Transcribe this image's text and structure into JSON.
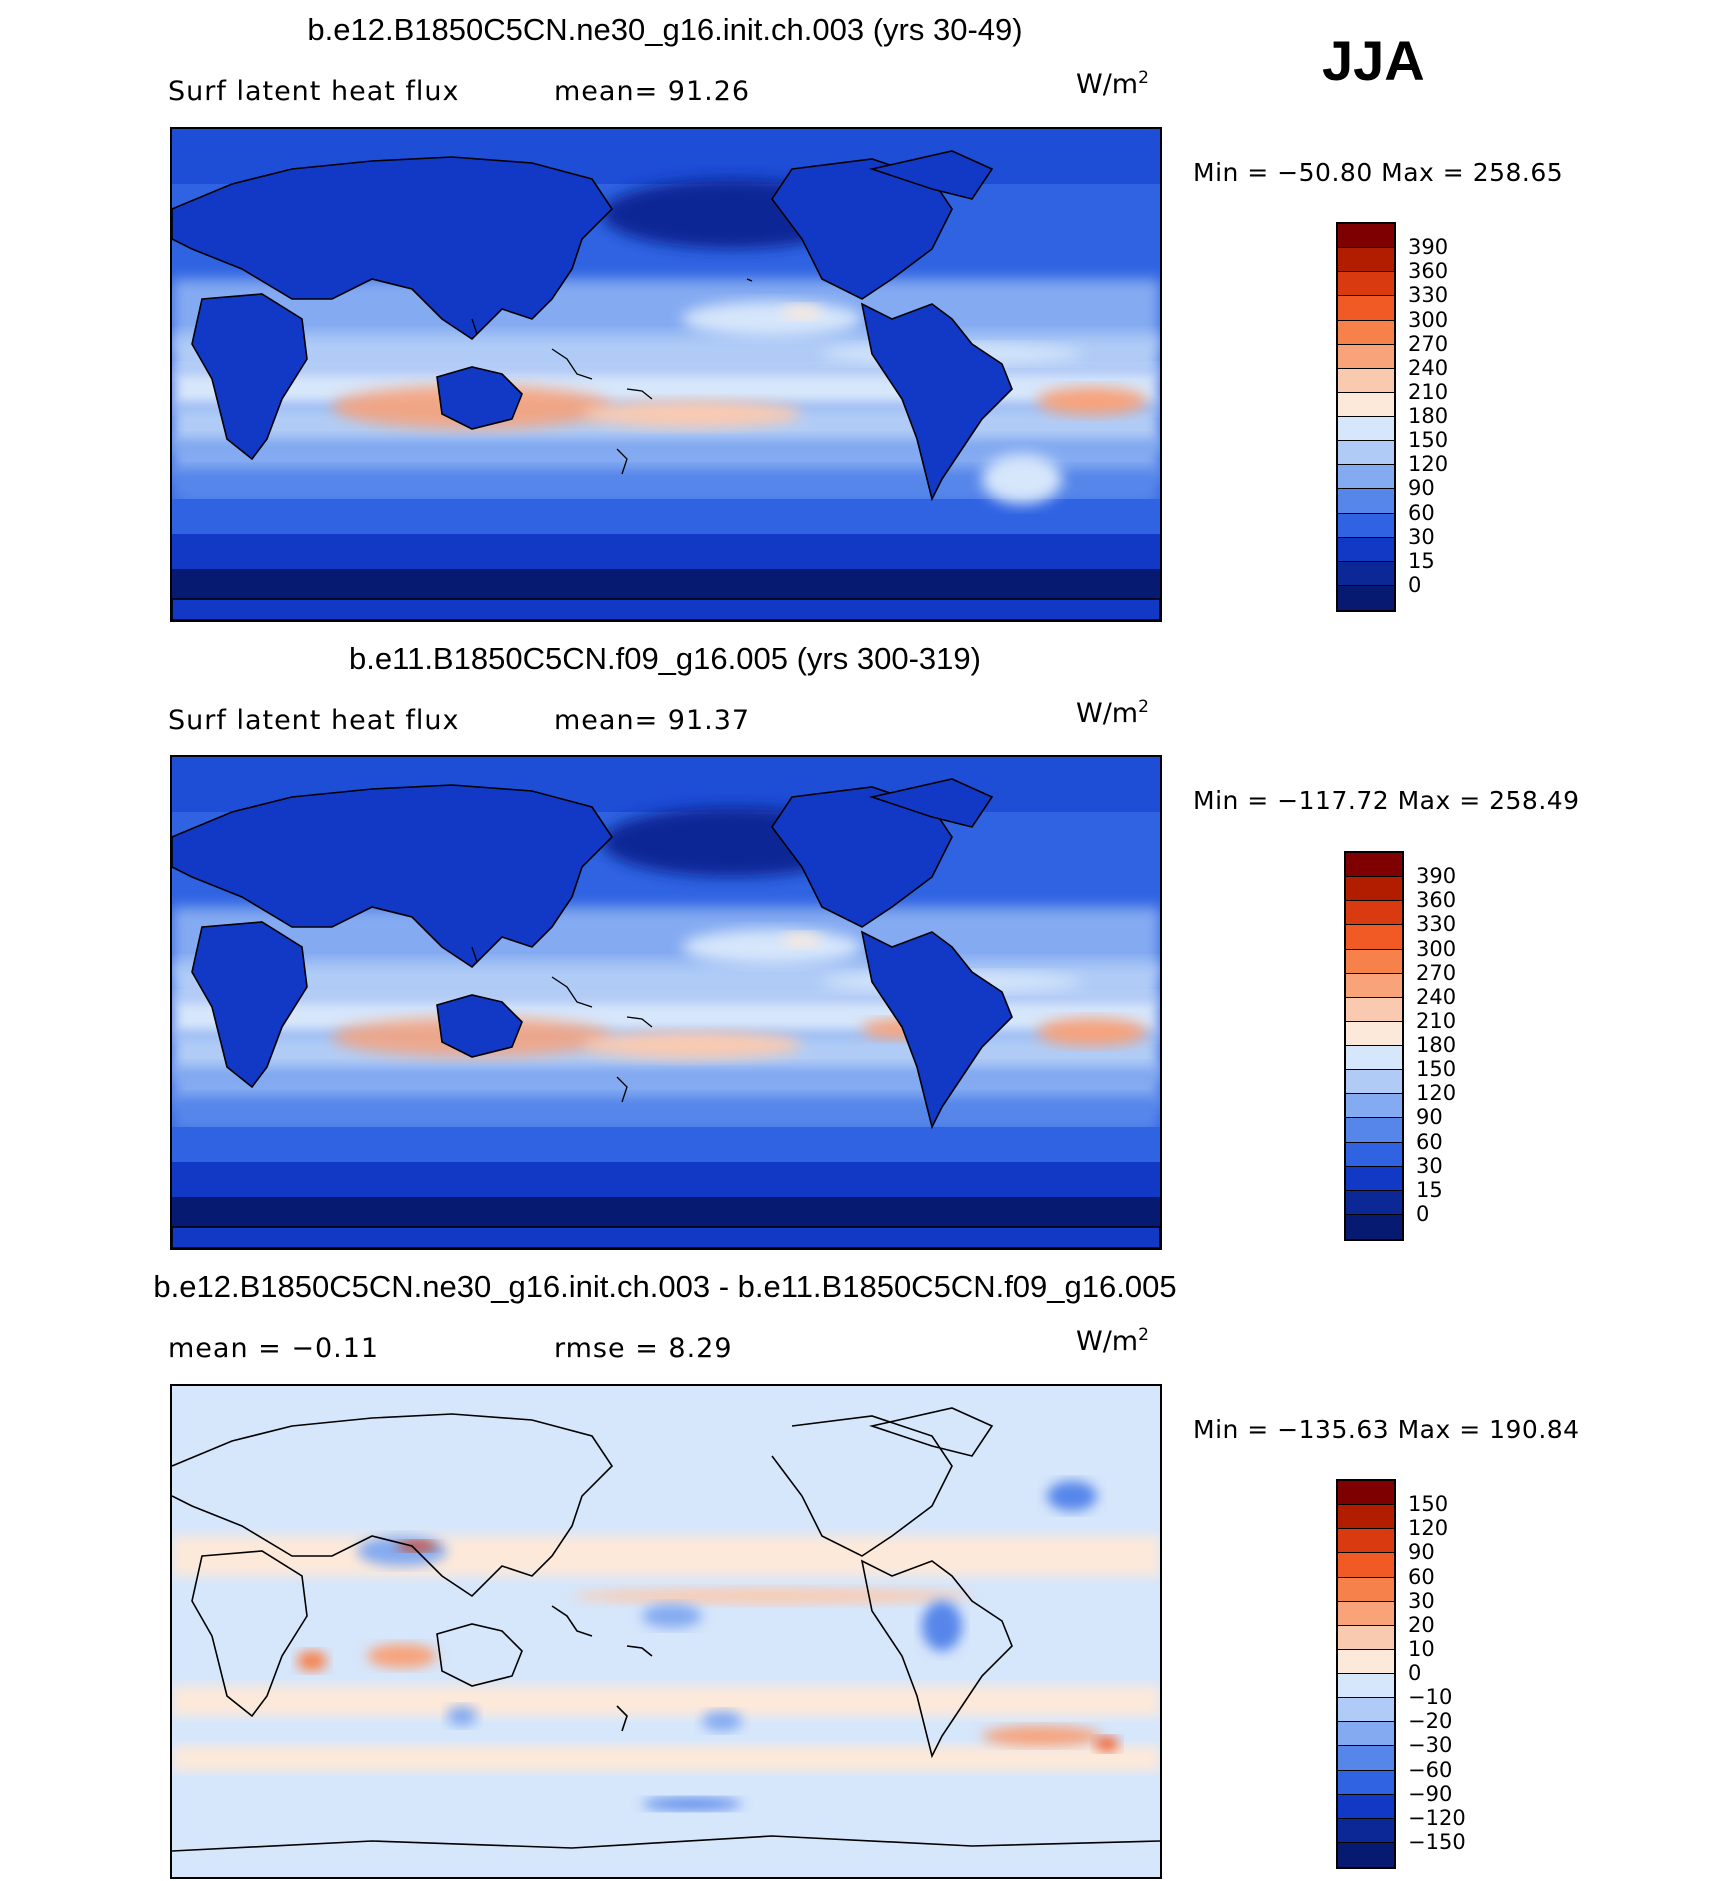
{
  "season": "JJA",
  "panels": [
    {
      "title": "b.e12.B1850C5CN.ne30_g16.init.ch.003 (yrs 30-49)",
      "left_text": "Surf  latent  heat  flux",
      "stat_text": "mean=   91.26",
      "units": "W/m",
      "units_sup": "2",
      "minmax": "Min  =  −50.80  Max  =  258.65",
      "type": "abs",
      "colorbar_labels": [
        "390",
        "360",
        "330",
        "300",
        "270",
        "240",
        "210",
        "180",
        "150",
        "120",
        "90",
        "60",
        "30",
        "15",
        "0"
      ]
    },
    {
      "title": "b.e11.B1850C5CN.f09_g16.005 (yrs 300-319)",
      "left_text": "Surf  latent  heat  flux",
      "stat_text": "mean=   91.37",
      "units": "W/m",
      "units_sup": "2",
      "minmax": "Min  =  −117.72  Max  =  258.49",
      "type": "abs",
      "colorbar_labels": [
        "390",
        "360",
        "330",
        "300",
        "270",
        "240",
        "210",
        "180",
        "150",
        "120",
        "90",
        "60",
        "30",
        "15",
        "0"
      ]
    },
    {
      "title": "b.e12.B1850C5CN.ne30_g16.init.ch.003 - b.e11.B1850C5CN.f09_g16.005",
      "left_text": "mean  =    −0.11",
      "stat_text": "rmse  =     8.29",
      "units": "W/m",
      "units_sup": "2",
      "minmax": "Min  =  −135.63  Max  =  190.84",
      "type": "diff",
      "colorbar_labels": [
        "150",
        "120",
        "90",
        "60",
        "30",
        "20",
        "10",
        "0",
        "−10",
        "−20",
        "−30",
        "−60",
        "−90",
        "−120",
        "−150"
      ]
    }
  ],
  "colors": {
    "abs_scale": [
      "#7f0000",
      "#b21d00",
      "#d93a10",
      "#f25a25",
      "#f7814a",
      "#f8a37a",
      "#facab0",
      "#fde9d9",
      "#d6e6fb",
      "#b0ccf6",
      "#84aaf1",
      "#5786ea",
      "#2f63e2",
      "#1238c6",
      "#0c2896",
      "#061a72"
    ],
    "diff_scale": [
      "#7f0000",
      "#b21d00",
      "#d93a10",
      "#f25a25",
      "#f7814a",
      "#f8a37a",
      "#facab0",
      "#fde9d9",
      "#d6e6fb",
      "#b0ccf6",
      "#84aaf1",
      "#5786ea",
      "#2f63e2",
      "#1238c6",
      "#0c2896",
      "#061a72"
    ]
  }
}
